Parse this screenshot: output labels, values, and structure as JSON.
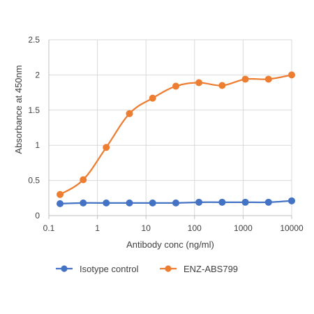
{
  "chart_data": {
    "type": "line",
    "xscale": "log",
    "xlim": [
      0.1,
      10000
    ],
    "ylim": [
      0,
      2.5
    ],
    "xlabel": "Antibody conc (ng/ml)",
    "ylabel": "Absorbance at 450nm",
    "x_ticks": [
      0.1,
      1,
      10,
      100,
      1000,
      10000
    ],
    "x_tick_labels": [
      "0.1",
      "1",
      "10",
      "100",
      "1000",
      "10000"
    ],
    "y_ticks": [
      0,
      0.5,
      1,
      1.5,
      2,
      2.5
    ],
    "y_tick_labels": [
      "0",
      "0.5",
      "1",
      "1.5",
      "2",
      "2.5"
    ],
    "grid": true,
    "legend_position": "bottom",
    "x": [
      0.17,
      0.51,
      1.52,
      4.57,
      13.7,
      41.2,
      123,
      370,
      1111,
      3333,
      10000
    ],
    "series": [
      {
        "name": "Isotype control",
        "color": "#4472c4",
        "marker": "circle",
        "smooth": true,
        "values": [
          0.17,
          0.18,
          0.18,
          0.18,
          0.18,
          0.18,
          0.19,
          0.19,
          0.19,
          0.19,
          0.21
        ]
      },
      {
        "name": "ENZ-ABS799",
        "color": "#ed7d31",
        "marker": "circle",
        "smooth": true,
        "values": [
          0.3,
          0.51,
          0.97,
          1.45,
          1.67,
          1.84,
          1.89,
          1.85,
          1.94,
          1.94,
          2.0
        ]
      }
    ]
  }
}
